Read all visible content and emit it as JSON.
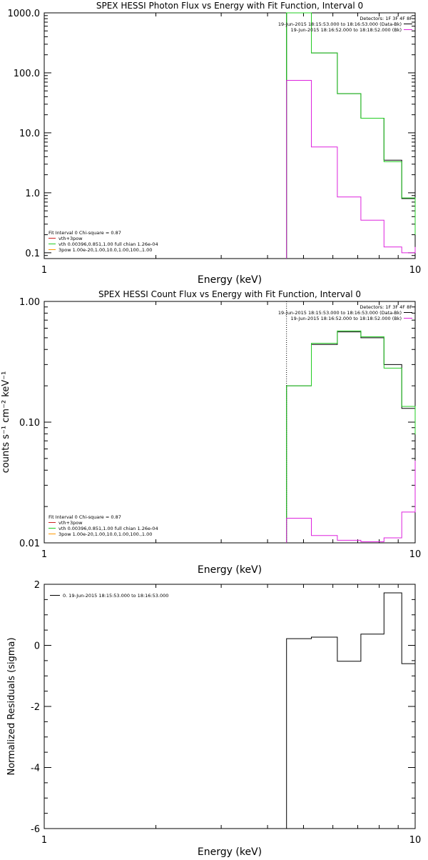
{
  "colors": {
    "black": "#000000",
    "green": "#22cc22",
    "magenta": "#dd22dd",
    "red": "#cc2222",
    "orange": "#ff9900"
  },
  "chart_data": [
    {
      "type": "line",
      "title": "SPEX HESSI Photon Flux vs Energy with Fit Function, Interval 0",
      "xlabel": "Energy (keV)",
      "ylabel": "",
      "xscale": "log",
      "yscale": "log",
      "xlim": [
        1,
        10
      ],
      "ylim": [
        0.08,
        1000
      ],
      "x_tick_labels": [
        {
          "v": 1,
          "t": "1"
        },
        {
          "v": 10,
          "t": "10"
        }
      ],
      "y_tick_labels": [
        {
          "v": 0.1,
          "t": "0.1"
        },
        {
          "v": 1,
          "t": "1.0"
        },
        {
          "v": 10,
          "t": "10.0"
        },
        {
          "v": 100,
          "t": "100.0"
        },
        {
          "v": 1000,
          "t": "1000.0"
        }
      ],
      "legend_tr": {
        "header": "Detectors: 1F 3F 4F 8F",
        "entries": [
          {
            "text": "19-Jun-2015 18:15:53.000 to 18:16:53.000 (Data-Bk)",
            "color": "#000000"
          },
          {
            "text": "19-Jun-2015 18:16:52.000 to 18:18:52.000 (Bk)",
            "color": "#dd22dd"
          }
        ]
      },
      "legend_bl": {
        "header": "Fit Interval 0   Chi-square = 0.87",
        "entries": [
          {
            "text": "vth+3pow",
            "color": "#cc2222"
          },
          {
            "text": "vth 0.00396,0.851,1.00  full chian 1.26e-04",
            "color": "#22cc22"
          },
          {
            "text": "3pow 1.00e-20,1.00,10.0,1.00,100.,1.00",
            "color": "#ff9900"
          }
        ]
      },
      "vline": {
        "x": 4.5,
        "color": "#22cc22"
      },
      "series": [
        {
          "name": "Data-Bk",
          "color": "#000000",
          "edges": [
            4.5,
            5.25,
            6.17,
            7.14,
            8.24,
            9.2,
            10.0
          ],
          "values": [
            1000,
            215,
            45,
            17.5,
            3.5,
            0.8,
            0.1
          ]
        },
        {
          "name": "vth+3pow",
          "color": "#22cc22",
          "edges": [
            4.5,
            5.25,
            6.17,
            7.14,
            8.24,
            9.2,
            10.0
          ],
          "values": [
            1000,
            215,
            45,
            17.5,
            3.3,
            0.82,
            0.2
          ]
        },
        {
          "name": "Bk",
          "color": "#dd22dd",
          "edges": [
            4.5,
            5.25,
            6.17,
            7.14,
            8.24,
            9.2,
            10.0
          ],
          "values": [
            75,
            5.8,
            0.85,
            0.35,
            0.125,
            0.1,
            0.125
          ]
        }
      ]
    },
    {
      "type": "line",
      "title": "SPEX HESSI Count Flux vs Energy with Fit Function, Interval 0",
      "xlabel": "Energy (keV)",
      "ylabel": "counts s⁻¹ cm⁻² keV⁻¹",
      "xscale": "log",
      "yscale": "log",
      "xlim": [
        1,
        10
      ],
      "ylim": [
        0.01,
        1.0
      ],
      "x_tick_labels": [
        {
          "v": 1,
          "t": "1"
        },
        {
          "v": 10,
          "t": "10"
        }
      ],
      "y_tick_labels": [
        {
          "v": 0.01,
          "t": "0.01"
        },
        {
          "v": 0.1,
          "t": "0.10"
        },
        {
          "v": 1,
          "t": "1.00"
        }
      ],
      "legend_tr": {
        "header": "Detectors: 1F 3F 4F 8F",
        "entries": [
          {
            "text": "19-Jun-2015 18:15:53.000 to 18:16:53.000 (Data-Bk)",
            "color": "#000000"
          },
          {
            "text": "19-Jun-2015 18:16:52.000 to 18:18:52.000 (Bk)",
            "color": "#dd22dd"
          }
        ]
      },
      "legend_bl": {
        "header": "Fit Interval 0   Chi-square = 0.87",
        "entries": [
          {
            "text": "vth+3pow",
            "color": "#cc2222"
          },
          {
            "text": "vth 0.00396,0.851,1.00  full chian 1.26e-04",
            "color": "#22cc22"
          },
          {
            "text": "3pow 1.00e-20,1.00,10.0,1.00,100.,1.00",
            "color": "#ff9900"
          }
        ]
      },
      "vline": {
        "x": 4.5,
        "color": "#000000",
        "dash": true
      },
      "series": [
        {
          "name": "Data-Bk",
          "color": "#000000",
          "edges": [
            4.5,
            5.25,
            6.17,
            7.14,
            8.24,
            9.2,
            10.0
          ],
          "values": [
            0.2,
            0.44,
            0.56,
            0.5,
            0.3,
            0.13,
            0.037
          ]
        },
        {
          "name": "vth+3pow",
          "color": "#22cc22",
          "edges": [
            4.5,
            5.25,
            6.17,
            7.14,
            8.24,
            9.2,
            10.0
          ],
          "values": [
            0.2,
            0.45,
            0.57,
            0.51,
            0.28,
            0.135,
            0.079
          ]
        },
        {
          "name": "Bk",
          "color": "#dd22dd",
          "edges": [
            4.5,
            5.25,
            6.17,
            7.14,
            8.24,
            9.2,
            10.0
          ],
          "values": [
            0.016,
            0.0115,
            0.0105,
            0.0102,
            0.011,
            0.018,
            0.048
          ]
        }
      ]
    },
    {
      "type": "line",
      "title": "",
      "xlabel": "Energy (keV)",
      "ylabel": "Normalized Residuals (sigma)",
      "xscale": "log",
      "yscale": "linear",
      "xlim": [
        1,
        10
      ],
      "ylim": [
        -6,
        2
      ],
      "x_tick_labels": [
        {
          "v": 1,
          "t": "1"
        },
        {
          "v": 10,
          "t": "10"
        }
      ],
      "y_tick_labels": [
        {
          "v": -6,
          "t": "-6"
        },
        {
          "v": -4,
          "t": "-4"
        },
        {
          "v": -2,
          "t": "-2"
        },
        {
          "v": 0,
          "t": "0"
        },
        {
          "v": 2,
          "t": "2"
        }
      ],
      "legend_tl": {
        "entries": [
          {
            "text": "0. 19-Jun-2015 18:15:53.000 to 18:16:53.000",
            "color": "#000000"
          }
        ]
      },
      "series": [
        {
          "name": "residuals",
          "color": "#000000",
          "edges": [
            4.5,
            5.25,
            6.17,
            7.14,
            8.24,
            9.2,
            10.0
          ],
          "values": [
            0.22,
            0.27,
            -0.52,
            0.37,
            1.72,
            -0.6,
            -4.5
          ],
          "drop_to_min": true
        }
      ]
    }
  ]
}
